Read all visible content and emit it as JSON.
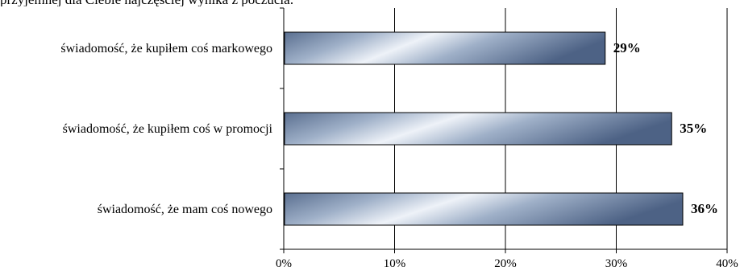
{
  "title_fragment": "przyjemnej dla Ciebie najczęściej wynika z poczucia:",
  "chart_data": {
    "type": "bar",
    "orientation": "horizontal",
    "categories": [
      "świadomość, że kupiłem coś markowego",
      "świadomość, że kupiłem coś w promocji",
      "świadomość, że mam coś nowego"
    ],
    "values": [
      29,
      35,
      36
    ],
    "value_labels": [
      "29%",
      "35%",
      "36%"
    ],
    "xlim": [
      0,
      40
    ],
    "x_ticks": [
      0,
      10,
      20,
      30,
      40
    ],
    "x_tick_labels": [
      "0%",
      "10%",
      "20%",
      "30%",
      "40%"
    ],
    "grid": true,
    "legend": "none",
    "colors": {
      "bar_dark": "#5a6f90",
      "bar_light": "#eef2f8",
      "bar_border": "#000000",
      "grid": "#000000"
    }
  }
}
